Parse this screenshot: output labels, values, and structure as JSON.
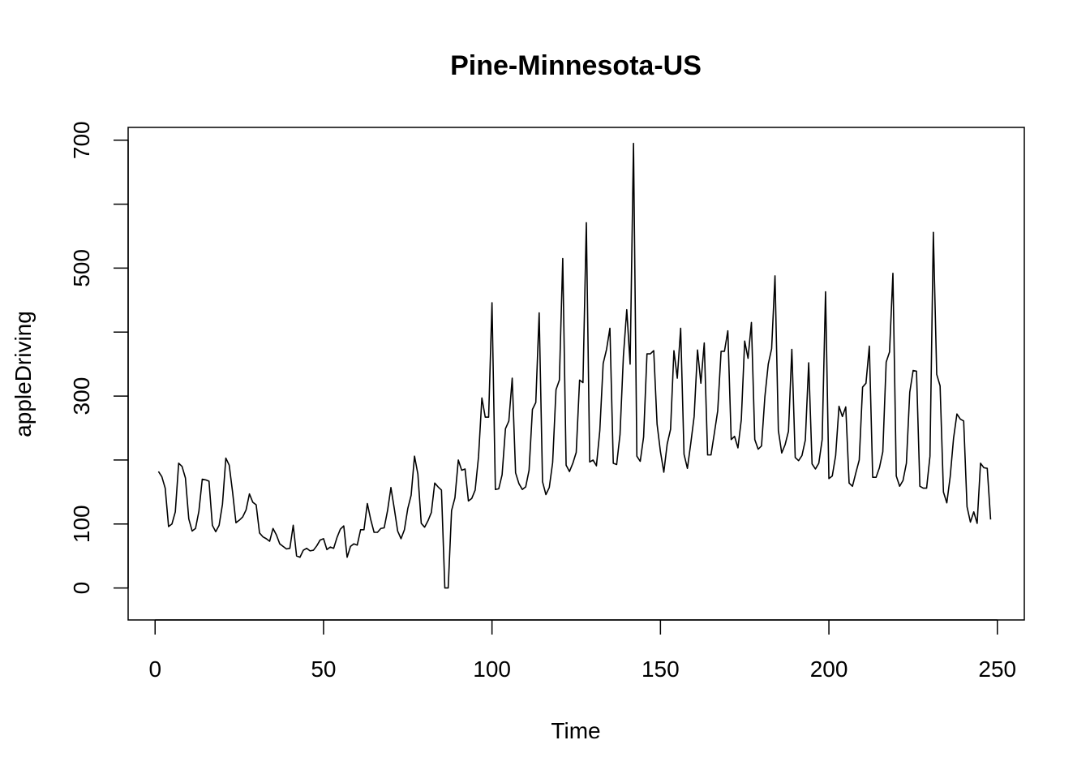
{
  "chart_data": {
    "type": "line",
    "title": "Pine-Minnesota-US",
    "xlabel": "Time",
    "ylabel": "appleDriving",
    "xlim": [
      -8,
      258
    ],
    "ylim": [
      -50,
      720
    ],
    "x_ticks": [
      0,
      50,
      100,
      150,
      200,
      250
    ],
    "y_ticks": [
      0,
      100,
      300,
      500,
      700
    ],
    "y_tick_labels": [
      "0",
      "100",
      "300",
      "500",
      "700"
    ],
    "grid": false,
    "legend": "none",
    "line_color": "#000000",
    "series": [
      {
        "x_start": 1,
        "values": [
          182,
          174,
          156,
          96,
          100,
          119,
          195,
          190,
          172,
          108,
          89,
          93,
          120,
          170,
          169,
          167,
          98,
          88,
          98,
          131,
          203,
          192,
          150,
          102,
          106,
          111,
          122,
          147,
          134,
          130,
          86,
          80,
          77,
          73,
          93,
          83,
          69,
          65,
          61,
          62,
          98,
          50,
          48,
          59,
          62,
          58,
          59,
          66,
          75,
          77,
          60,
          64,
          62,
          79,
          92,
          97,
          48,
          65,
          69,
          67,
          91,
          91,
          132,
          107,
          87,
          87,
          93,
          94,
          121,
          157,
          124,
          89,
          77,
          91,
          124,
          145,
          206,
          178,
          101,
          95,
          105,
          118,
          164,
          158,
          153,
          0,
          0,
          121,
          141,
          200,
          184,
          186,
          136,
          140,
          153,
          205,
          297,
          267,
          267,
          446,
          154,
          155,
          177,
          249,
          261,
          328,
          180,
          163,
          154,
          158,
          184,
          279,
          290,
          430,
          166,
          146,
          157,
          196,
          310,
          325,
          515,
          192,
          182,
          195,
          212,
          325,
          321,
          571,
          197,
          200,
          191,
          246,
          351,
          373,
          406,
          195,
          193,
          240,
          362,
          435,
          350,
          695,
          206,
          198,
          236,
          366,
          366,
          371,
          256,
          213,
          181,
          225,
          248,
          371,
          328,
          406,
          209,
          187,
          226,
          268,
          372,
          320,
          383,
          208,
          208,
          242,
          277,
          370,
          370,
          402,
          232,
          237,
          219,
          263,
          386,
          359,
          415,
          232,
          217,
          222,
          299,
          350,
          374,
          488,
          246,
          211,
          224,
          245,
          373,
          204,
          199,
          207,
          231,
          352,
          194,
          186,
          195,
          232,
          463,
          171,
          175,
          207,
          284,
          268,
          283,
          164,
          159,
          180,
          200,
          314,
          320,
          378,
          173,
          173,
          188,
          213,
          353,
          369,
          492,
          175,
          159,
          168,
          195,
          306,
          340,
          339,
          159,
          156,
          156,
          206,
          556,
          334,
          316,
          150,
          133,
          174,
          234,
          272,
          264,
          261,
          127,
          103,
          119,
          101,
          195,
          188,
          187,
          107
        ]
      }
    ]
  }
}
